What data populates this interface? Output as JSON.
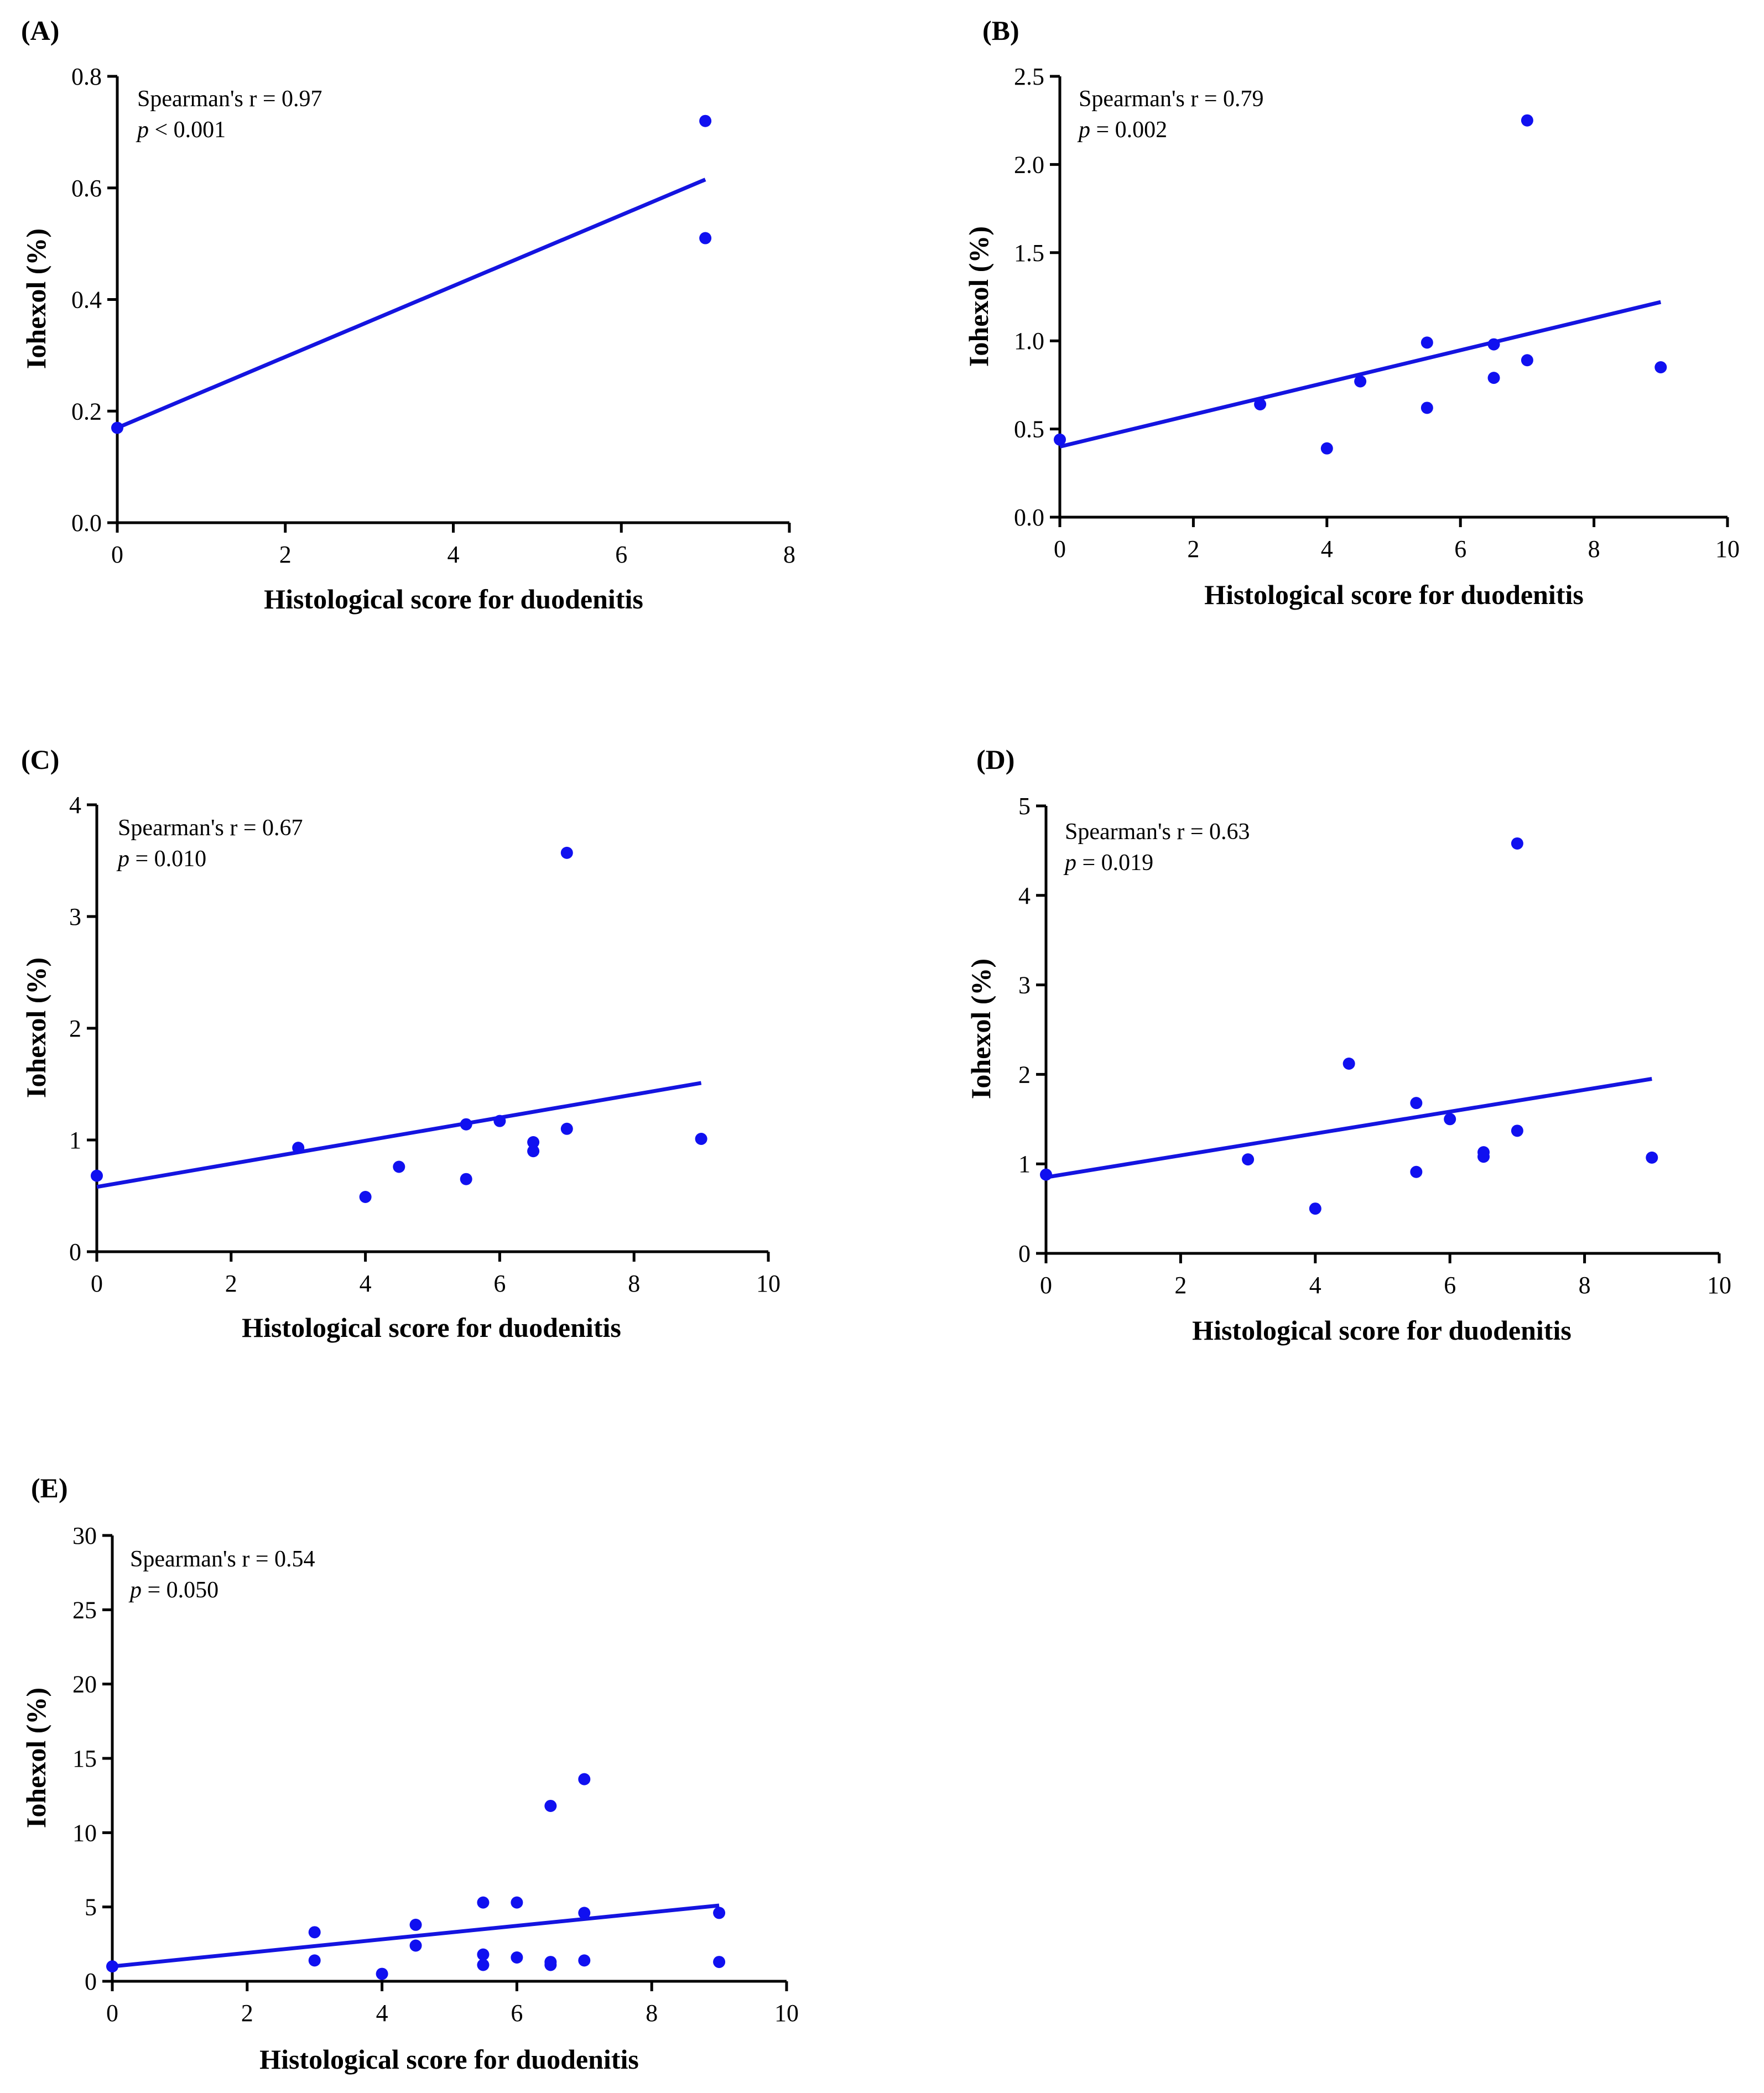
{
  "colors": {
    "marker": "#1010f0",
    "fit_line": "#1414e0",
    "axis": "#000000"
  },
  "chart_data": [
    {
      "panel": "(A)",
      "type": "scatter",
      "xlabel": "Histological score for duodenitis",
      "ylabel": "Iohexol (%)",
      "xlim": [
        0,
        8
      ],
      "ylim": [
        0,
        0.8
      ],
      "xticks": [
        "0",
        "2",
        "4",
        "6",
        "8"
      ],
      "yticks": [
        "0.0",
        "0.2",
        "0.4",
        "0.6",
        "0.8"
      ],
      "stat_line1": "Spearman's r = 0.97",
      "stat_p_letter": "p",
      "stat_p_rest": " < 0.001",
      "points": [
        [
          0,
          0.17
        ],
        [
          7,
          0.72
        ],
        [
          7,
          0.51
        ]
      ],
      "fit": [
        [
          0,
          0.17
        ],
        [
          7,
          0.615
        ]
      ]
    },
    {
      "panel": "(B)",
      "type": "scatter",
      "xlabel": "Histological score for duodenitis",
      "ylabel": "Iohexol (%)",
      "xlim": [
        0,
        10
      ],
      "ylim": [
        0,
        2.5
      ],
      "xticks": [
        "0",
        "2",
        "4",
        "6",
        "8",
        "10"
      ],
      "yticks": [
        "0.0",
        "0.5",
        "1.0",
        "1.5",
        "2.0",
        "2.5"
      ],
      "stat_line1": "Spearman's r = 0.79",
      "stat_p_letter": "p",
      "stat_p_rest": " = 0.002",
      "points": [
        [
          0,
          0.44
        ],
        [
          3,
          0.64
        ],
        [
          4,
          0.39
        ],
        [
          4.5,
          0.77
        ],
        [
          5.5,
          0.99
        ],
        [
          5.5,
          0.62
        ],
        [
          6.5,
          0.98
        ],
        [
          6.5,
          0.79
        ],
        [
          7,
          0.89
        ],
        [
          7,
          2.25
        ],
        [
          9,
          0.85
        ]
      ],
      "fit": [
        [
          0,
          0.4
        ],
        [
          9,
          1.22
        ]
      ]
    },
    {
      "panel": "(C)",
      "type": "scatter",
      "xlabel": "Histological score for duodenitis",
      "ylabel": "Iohexol (%)",
      "xlim": [
        0,
        10
      ],
      "ylim": [
        0,
        4
      ],
      "xticks": [
        "0",
        "2",
        "4",
        "6",
        "8",
        "10"
      ],
      "yticks": [
        "0",
        "1",
        "2",
        "3",
        "4"
      ],
      "stat_line1": "Spearman's r = 0.67",
      "stat_p_letter": "p",
      "stat_p_rest": " = 0.010",
      "points": [
        [
          0,
          0.68
        ],
        [
          3,
          0.93
        ],
        [
          4,
          0.49
        ],
        [
          4.5,
          0.76
        ],
        [
          5.5,
          1.14
        ],
        [
          5.5,
          0.65
        ],
        [
          6,
          1.17
        ],
        [
          6.5,
          0.98
        ],
        [
          6.5,
          0.9
        ],
        [
          7,
          1.1
        ],
        [
          7,
          3.57
        ],
        [
          9,
          1.01
        ]
      ],
      "fit": [
        [
          0,
          0.58
        ],
        [
          9,
          1.51
        ]
      ]
    },
    {
      "panel": "(D)",
      "type": "scatter",
      "xlabel": "Histological score for duodenitis",
      "ylabel": "Iohexol (%)",
      "xlim": [
        0,
        10
      ],
      "ylim": [
        0,
        5
      ],
      "xticks": [
        "0",
        "2",
        "4",
        "6",
        "8",
        "10"
      ],
      "yticks": [
        "0",
        "1",
        "2",
        "3",
        "4",
        "5"
      ],
      "stat_line1": "Spearman's r = 0.63",
      "stat_p_letter": "p",
      "stat_p_rest": " = 0.019",
      "points": [
        [
          0,
          0.88
        ],
        [
          3,
          1.05
        ],
        [
          4,
          0.5
        ],
        [
          4.5,
          2.12
        ],
        [
          5.5,
          1.68
        ],
        [
          5.5,
          0.91
        ],
        [
          6,
          1.5
        ],
        [
          6.5,
          1.13
        ],
        [
          6.5,
          1.08
        ],
        [
          7,
          1.37
        ],
        [
          7,
          4.58
        ],
        [
          9,
          1.07
        ]
      ],
      "fit": [
        [
          0,
          0.85
        ],
        [
          9,
          1.95
        ]
      ]
    },
    {
      "panel": "(E)",
      "type": "scatter",
      "xlabel": "Histological score for duodenitis",
      "ylabel": "Iohexol (%)",
      "xlim": [
        0,
        10
      ],
      "ylim": [
        0,
        30
      ],
      "xticks": [
        "0",
        "2",
        "4",
        "6",
        "8",
        "10"
      ],
      "yticks": [
        "0",
        "5",
        "10",
        "15",
        "20",
        "25",
        "30"
      ],
      "stat_line1": "Spearman's r = 0.54",
      "stat_p_letter": "p",
      "stat_p_rest": " = 0.050",
      "points": [
        [
          0,
          1.0
        ],
        [
          3,
          3.3
        ],
        [
          3,
          1.4
        ],
        [
          4,
          0.5
        ],
        [
          4.5,
          3.8
        ],
        [
          4.5,
          2.4
        ],
        [
          5.5,
          5.3
        ],
        [
          5.5,
          1.8
        ],
        [
          5.5,
          1.1
        ],
        [
          6,
          5.3
        ],
        [
          6,
          1.6
        ],
        [
          6.5,
          11.8
        ],
        [
          6.5,
          1.3
        ],
        [
          6.5,
          1.1
        ],
        [
          7,
          13.6
        ],
        [
          7,
          4.6
        ],
        [
          7,
          1.4
        ],
        [
          9,
          4.6
        ],
        [
          9,
          1.3
        ]
      ],
      "fit": [
        [
          0,
          1.0
        ],
        [
          9,
          5.1
        ]
      ]
    }
  ]
}
